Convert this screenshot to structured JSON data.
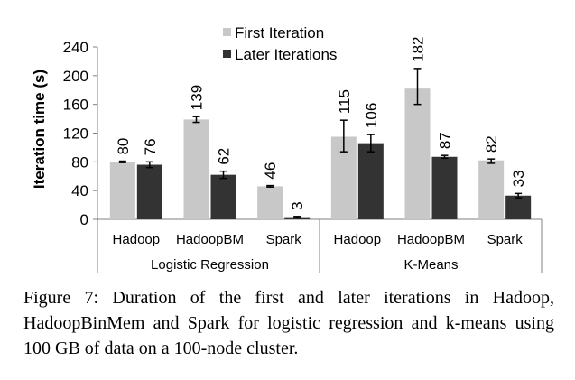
{
  "chart_data": {
    "type": "bar",
    "ylabel": "Iteration time (s)",
    "ylim": [
      0,
      240
    ],
    "yticks": [
      0,
      40,
      80,
      120,
      160,
      200,
      240
    ],
    "legend_position": "top-center",
    "groups": [
      {
        "label": "Logistic Regression",
        "categories": [
          "Hadoop",
          "HadoopBM",
          "Spark"
        ]
      },
      {
        "label": "K-Means",
        "categories": [
          "Hadoop",
          "HadoopBM",
          "Spark"
        ]
      }
    ],
    "series": [
      {
        "name": "First Iteration",
        "color": "#c8c8c8",
        "values": [
          80,
          139,
          46,
          115,
          182,
          82
        ],
        "errors": [
          [
            79,
            81
          ],
          [
            135,
            143
          ],
          [
            45,
            47
          ],
          [
            94,
            138
          ],
          [
            160,
            210
          ],
          [
            78,
            84
          ]
        ]
      },
      {
        "name": "Later Iterations",
        "color": "#333333",
        "values": [
          76,
          62,
          3,
          106,
          87,
          33
        ],
        "errors": [
          [
            72,
            80
          ],
          [
            57,
            67
          ],
          [
            2,
            4
          ],
          [
            94,
            118
          ],
          [
            85,
            89
          ],
          [
            30,
            36
          ]
        ]
      }
    ],
    "grid": false
  },
  "caption": {
    "text": "Figure 7: Duration of the first and later iterations in Hadoop, HadoopBinMem and Spark for logistic regression and k-means using 100 GB of data on a 100-node cluster."
  }
}
